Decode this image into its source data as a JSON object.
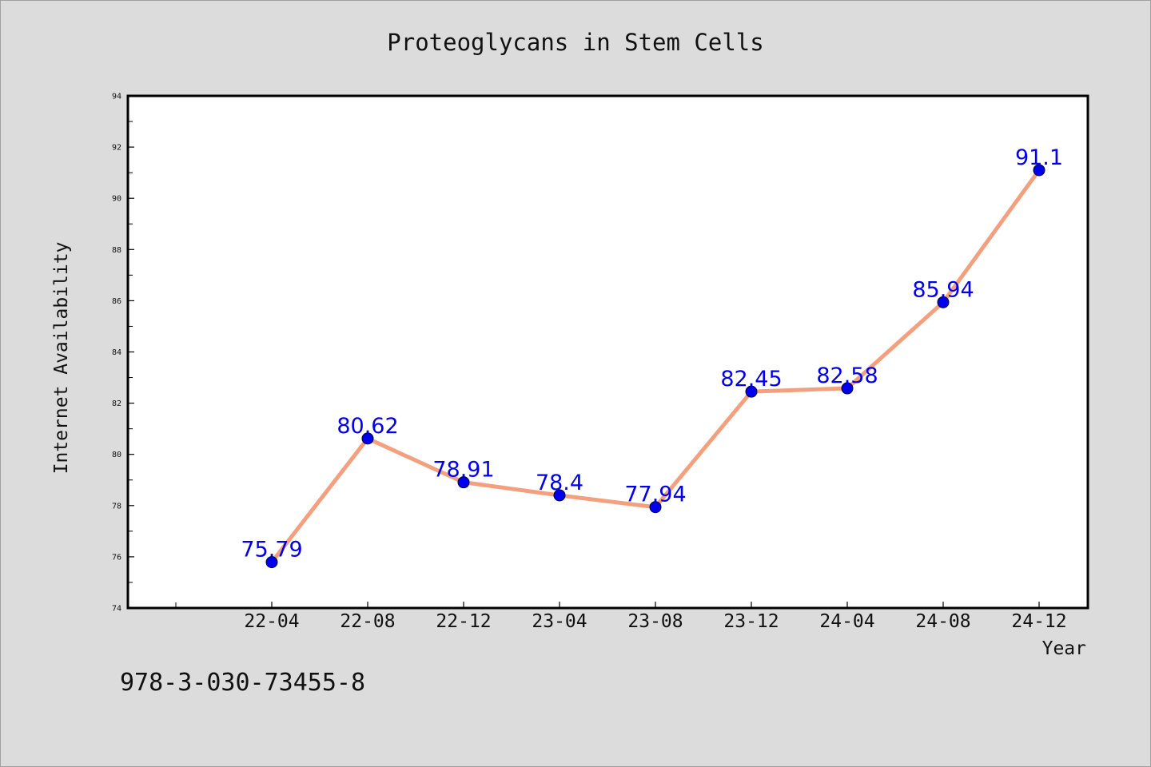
{
  "chart_data": {
    "type": "line",
    "title": "Proteoglycans in Stem Cells",
    "xlabel": "Year",
    "ylabel": "Internet Availability",
    "categories": [
      "22-04",
      "22-08",
      "22-12",
      "23-04",
      "23-08",
      "23-12",
      "24-04",
      "24-08",
      "24-12"
    ],
    "series": [
      {
        "values": [
          75.79,
          80.62,
          78.91,
          78.4,
          77.94,
          82.45,
          82.58,
          85.94,
          91.1
        ],
        "labels": [
          "75.79",
          "80.62",
          "78.91",
          "78.4",
          "77.94",
          "82.45",
          "82.58",
          "85.94",
          "91.1"
        ]
      }
    ],
    "ylim": [
      74,
      94
    ],
    "yticks": [
      "74",
      "76",
      "78",
      "80",
      "82",
      "84",
      "86",
      "88",
      "90",
      "92",
      "94"
    ],
    "grid": false,
    "legend": "none",
    "colors": {
      "line": "#f4a07e",
      "marker": "#0000ee",
      "label": "#0000ee",
      "plot_background": "#ffffff",
      "figure_background": "#dcdcdc"
    }
  },
  "footnote": "978-3-030-73455-8"
}
